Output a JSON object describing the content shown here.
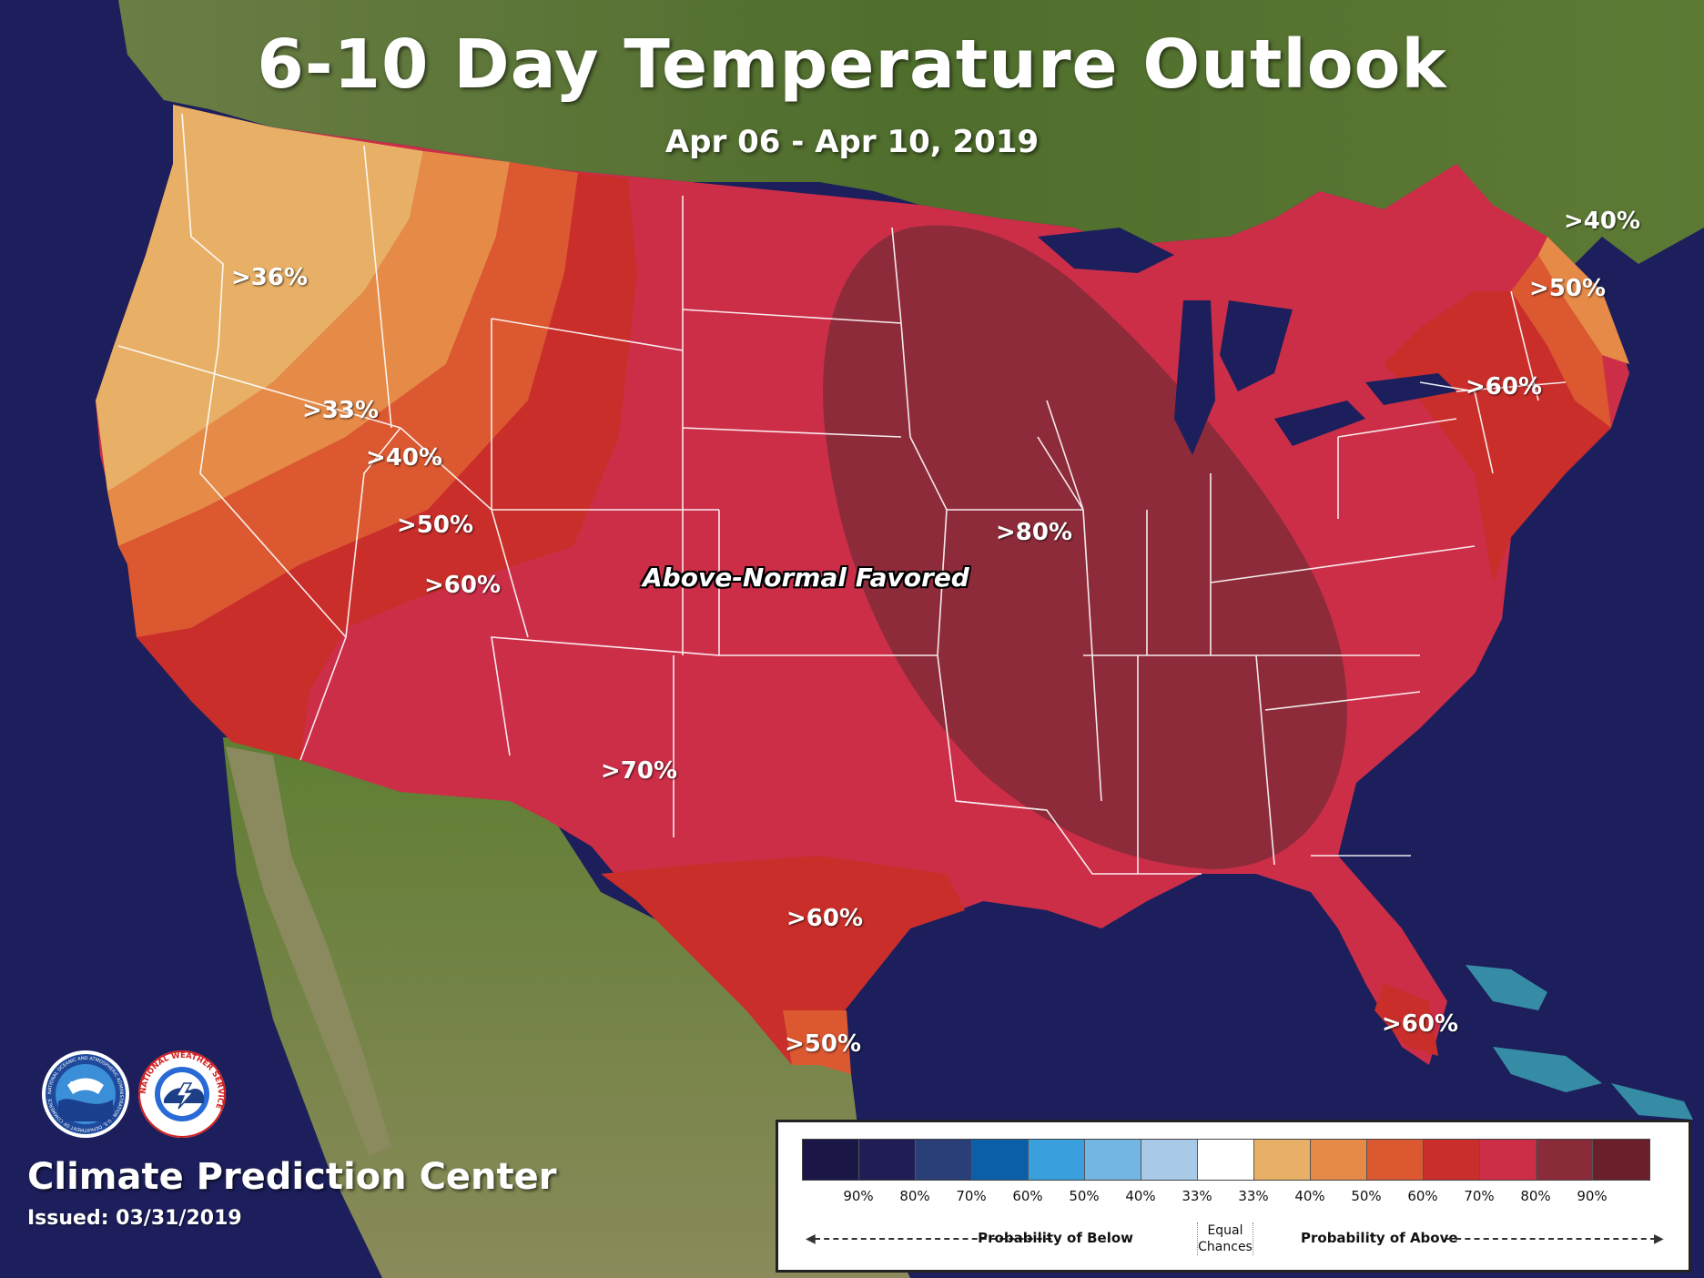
{
  "title": "6-10 Day Temperature Outlook",
  "date_range": "Apr 06 - Apr 10, 2019",
  "map_label": "Above-Normal Favored",
  "probability_labels": [
    ">36%",
    ">33%",
    ">40%",
    ">50%",
    ">60%",
    ">70%",
    ">80%",
    ">60%",
    ">50%",
    ">40%",
    ">50%",
    ">60%",
    ">60%"
  ],
  "footer": {
    "center_name": "Climate Prediction Center",
    "issued": "Issued: 03/31/2019"
  },
  "logos": [
    {
      "name": "NOAA",
      "ring_text": "NATIONAL OCEANIC AND ATMOSPHERIC ADMINISTRATION · U.S. DEPARTMENT OF COMMERCE"
    },
    {
      "name": "NATIONAL WEATHER SERVICE",
      "ring_text": "NATIONAL WEATHER SERVICE"
    }
  ],
  "legend": {
    "colors": [
      "#1a1747",
      "#201c56",
      "#2a3f78",
      "#0b5ea8",
      "#3a9fdd",
      "#74b6e3",
      "#a9c9e8",
      "#ffffff",
      "#e8b066",
      "#e68a48",
      "#db5830",
      "#c92e2a",
      "#cc2e48",
      "#8a2b3a",
      "#6a1f2a"
    ],
    "tick_labels": [
      "90%",
      "80%",
      "70%",
      "60%",
      "50%",
      "40%",
      "33%",
      "33%",
      "40%",
      "50%",
      "60%",
      "70%",
      "80%",
      "90%"
    ],
    "below_label": "Probability of Below",
    "equal_label": "Equal Chances",
    "above_label": "Probability of Above"
  },
  "colors": {
    "ocean": "#1c1f5c",
    "land": "#4d6b2e",
    "above_33": "#e8b066",
    "above_40": "#e68a48",
    "above_50": "#db5830",
    "above_60": "#c92e2a",
    "above_70": "#cc2e48",
    "above_80": "#8a2b3a"
  }
}
